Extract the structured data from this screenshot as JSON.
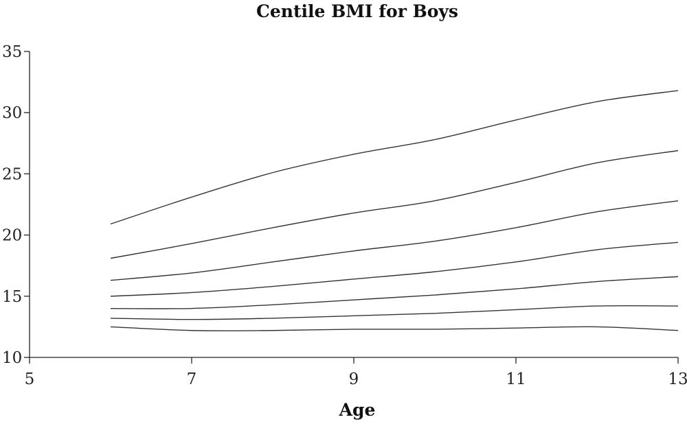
{
  "chart_data": {
    "type": "line",
    "title": "Centile BMI for Boys",
    "xlabel": "Age",
    "ylabel": "",
    "xlim": [
      5,
      13
    ],
    "ylim": [
      10,
      35
    ],
    "xticks": [
      5,
      7,
      9,
      11,
      13
    ],
    "yticks": [
      10,
      15,
      20,
      25,
      30,
      35
    ],
    "grid": false,
    "x": [
      6,
      7,
      8,
      9,
      10,
      11,
      12,
      13
    ],
    "series": [
      {
        "values": [
          12.5,
          12.2,
          12.2,
          12.3,
          12.3,
          12.4,
          12.5,
          12.2
        ]
      },
      {
        "values": [
          13.2,
          13.1,
          13.2,
          13.4,
          13.6,
          13.9,
          14.2,
          14.2
        ]
      },
      {
        "values": [
          14.0,
          14.0,
          14.3,
          14.7,
          15.1,
          15.6,
          16.2,
          16.6
        ]
      },
      {
        "values": [
          15.0,
          15.3,
          15.8,
          16.4,
          17.0,
          17.8,
          18.8,
          19.4
        ]
      },
      {
        "values": [
          16.3,
          16.9,
          17.8,
          18.7,
          19.5,
          20.6,
          21.9,
          22.8
        ]
      },
      {
        "values": [
          18.1,
          19.3,
          20.6,
          21.8,
          22.8,
          24.3,
          25.9,
          26.9
        ]
      },
      {
        "values": [
          20.9,
          23.1,
          25.1,
          26.6,
          27.8,
          29.4,
          30.9,
          31.8
        ]
      }
    ],
    "line_color": "#333333"
  }
}
